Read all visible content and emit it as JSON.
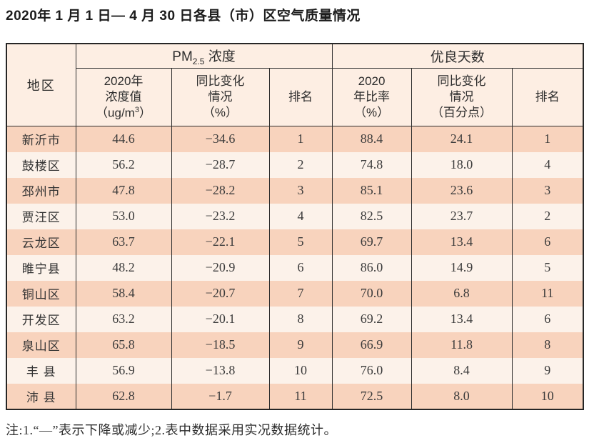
{
  "title": "2020年 1 月 1 日— 4 月 30 日各县（市）区空气质量情况",
  "footnote": "注:1.“—”表示下降或减少;2.表中数据采用实况数据统计。",
  "colors": {
    "row_stripe_dark": "#f8d3bd",
    "row_stripe_light": "#fcf2ea",
    "header_background": "#fdeee3",
    "border": "#2e2e2e",
    "text": "#333333"
  },
  "table": {
    "region_header": "地区",
    "groups": [
      {
        "label_main": "PM",
        "label_sub": "2.5",
        "label_rest": " 浓度"
      },
      {
        "label": "优良天数"
      }
    ],
    "subheaders": {
      "pm_value": {
        "line1": "2020年",
        "line2": "浓度值",
        "line3_pre": "（ug/m",
        "line3_sup": "3",
        "line3_post": "）"
      },
      "pm_change": {
        "line1": "同比变化",
        "line2": "情况",
        "line3": "（%）"
      },
      "pm_rank": "排名",
      "days_ratio": {
        "line1": "2020",
        "line2": "年比率",
        "line3": "（%）"
      },
      "days_change": {
        "line1": "同比变化",
        "line2": "情况",
        "line3": "（百分点）"
      },
      "days_rank": "排名"
    },
    "rows": [
      {
        "region": "新沂市",
        "pm_value": "44.6",
        "pm_change": "−34.6",
        "pm_rank": "1",
        "days_ratio": "88.4",
        "days_change": "24.1",
        "days_rank": "1"
      },
      {
        "region": "鼓楼区",
        "pm_value": "56.2",
        "pm_change": "−28.7",
        "pm_rank": "2",
        "days_ratio": "74.8",
        "days_change": "18.0",
        "days_rank": "4"
      },
      {
        "region": "邳州市",
        "pm_value": "47.8",
        "pm_change": "−28.2",
        "pm_rank": "3",
        "days_ratio": "85.1",
        "days_change": "23.6",
        "days_rank": "3"
      },
      {
        "region": "贾汪区",
        "pm_value": "53.0",
        "pm_change": "−23.2",
        "pm_rank": "4",
        "days_ratio": "82.5",
        "days_change": "23.7",
        "days_rank": "2"
      },
      {
        "region": "云龙区",
        "pm_value": "63.7",
        "pm_change": "−22.1",
        "pm_rank": "5",
        "days_ratio": "69.7",
        "days_change": "13.4",
        "days_rank": "6"
      },
      {
        "region": "睢宁县",
        "pm_value": "48.2",
        "pm_change": "−20.9",
        "pm_rank": "6",
        "days_ratio": "86.0",
        "days_change": "14.9",
        "days_rank": "5"
      },
      {
        "region": "铜山区",
        "pm_value": "58.4",
        "pm_change": "−20.7",
        "pm_rank": "7",
        "days_ratio": "70.0",
        "days_change": "6.8",
        "days_rank": "11"
      },
      {
        "region": "开发区",
        "pm_value": "63.2",
        "pm_change": "−20.1",
        "pm_rank": "8",
        "days_ratio": "69.2",
        "days_change": "13.4",
        "days_rank": "6"
      },
      {
        "region": "泉山区",
        "pm_value": "65.8",
        "pm_change": "−18.5",
        "pm_rank": "9",
        "days_ratio": "66.9",
        "days_change": "11.8",
        "days_rank": "8"
      },
      {
        "region": "丰 县",
        "pm_value": "56.9",
        "pm_change": "−13.8",
        "pm_rank": "10",
        "days_ratio": "76.0",
        "days_change": "8.4",
        "days_rank": "9"
      },
      {
        "region": "沛 县",
        "pm_value": "62.8",
        "pm_change": "−1.7",
        "pm_rank": "11",
        "days_ratio": "72.5",
        "days_change": "8.0",
        "days_rank": "10"
      }
    ]
  }
}
